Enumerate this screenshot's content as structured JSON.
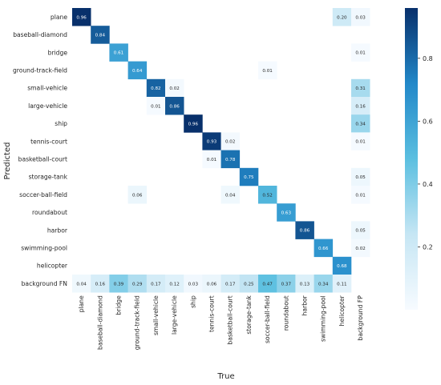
{
  "chart_data": {
    "type": "heatmap",
    "xlabel": "True",
    "ylabel": "Predicted",
    "x_categories": [
      "plane",
      "baseball-diamond",
      "bridge",
      "ground-track-field",
      "small-vehicle",
      "large-vehicle",
      "ship",
      "tennis-court",
      "basketball-court",
      "storage-tank",
      "soccer-ball-field",
      "roundabout",
      "harbor",
      "swimming-pool",
      "helicopter",
      "background FP"
    ],
    "y_categories": [
      "plane",
      "baseball-diamond",
      "bridge",
      "ground-track-field",
      "small-vehicle",
      "large-vehicle",
      "ship",
      "tennis-court",
      "basketball-court",
      "storage-tank",
      "soccer-ball-field",
      "roundabout",
      "harbor",
      "swimming-pool",
      "helicopter",
      "background FN"
    ],
    "cells": [
      {
        "row": 0,
        "col": 0,
        "value": 0.96,
        "label": "0.96"
      },
      {
        "row": 0,
        "col": 14,
        "value": 0.2,
        "label": "0.20"
      },
      {
        "row": 0,
        "col": 15,
        "value": 0.03,
        "label": "0.03"
      },
      {
        "row": 1,
        "col": 1,
        "value": 0.84,
        "label": "0.84"
      },
      {
        "row": 2,
        "col": 2,
        "value": 0.61,
        "label": "0.61"
      },
      {
        "row": 2,
        "col": 15,
        "value": 0.01,
        "label": "0.01"
      },
      {
        "row": 3,
        "col": 3,
        "value": 0.64,
        "label": "0.64"
      },
      {
        "row": 3,
        "col": 10,
        "value": 0.01,
        "label": "0.01"
      },
      {
        "row": 4,
        "col": 4,
        "value": 0.82,
        "label": "0.82"
      },
      {
        "row": 4,
        "col": 5,
        "value": 0.02,
        "label": "0.02"
      },
      {
        "row": 4,
        "col": 15,
        "value": 0.31,
        "label": "0.31"
      },
      {
        "row": 5,
        "col": 4,
        "value": 0.01,
        "label": "0.01"
      },
      {
        "row": 5,
        "col": 5,
        "value": 0.86,
        "label": "0.86"
      },
      {
        "row": 5,
        "col": 15,
        "value": 0.16,
        "label": "0.16"
      },
      {
        "row": 6,
        "col": 6,
        "value": 0.96,
        "label": "0.96"
      },
      {
        "row": 6,
        "col": 15,
        "value": 0.34,
        "label": "0.34"
      },
      {
        "row": 7,
        "col": 7,
        "value": 0.93,
        "label": "0.93"
      },
      {
        "row": 7,
        "col": 8,
        "value": 0.02,
        "label": "0.02"
      },
      {
        "row": 7,
        "col": 15,
        "value": 0.01,
        "label": "0.01"
      },
      {
        "row": 8,
        "col": 7,
        "value": 0.01,
        "label": "0.01"
      },
      {
        "row": 8,
        "col": 8,
        "value": 0.78,
        "label": "0.78"
      },
      {
        "row": 9,
        "col": 9,
        "value": 0.75,
        "label": "0.75"
      },
      {
        "row": 9,
        "col": 15,
        "value": 0.05,
        "label": "0.05"
      },
      {
        "row": 10,
        "col": 3,
        "value": 0.06,
        "label": "0.06"
      },
      {
        "row": 10,
        "col": 8,
        "value": 0.04,
        "label": "0.04"
      },
      {
        "row": 10,
        "col": 10,
        "value": 0.52,
        "label": "0.52"
      },
      {
        "row": 10,
        "col": 15,
        "value": 0.01,
        "label": "0.01"
      },
      {
        "row": 11,
        "col": 11,
        "value": 0.63,
        "label": "0.63"
      },
      {
        "row": 12,
        "col": 12,
        "value": 0.86,
        "label": "0.86"
      },
      {
        "row": 12,
        "col": 15,
        "value": 0.05,
        "label": "0.05"
      },
      {
        "row": 13,
        "col": 13,
        "value": 0.66,
        "label": "0.66"
      },
      {
        "row": 13,
        "col": 15,
        "value": 0.02,
        "label": "0.02"
      },
      {
        "row": 14,
        "col": 14,
        "value": 0.68,
        "label": "0.68"
      },
      {
        "row": 15,
        "col": 0,
        "value": 0.04,
        "label": "0.04"
      },
      {
        "row": 15,
        "col": 1,
        "value": 0.16,
        "label": "0.16"
      },
      {
        "row": 15,
        "col": 2,
        "value": 0.39,
        "label": "0.39"
      },
      {
        "row": 15,
        "col": 3,
        "value": 0.29,
        "label": "0.29"
      },
      {
        "row": 15,
        "col": 4,
        "value": 0.17,
        "label": "0.17"
      },
      {
        "row": 15,
        "col": 5,
        "value": 0.12,
        "label": "0.12"
      },
      {
        "row": 15,
        "col": 6,
        "value": 0.03,
        "label": "0.03"
      },
      {
        "row": 15,
        "col": 7,
        "value": 0.06,
        "label": "0.06"
      },
      {
        "row": 15,
        "col": 8,
        "value": 0.17,
        "label": "0.17"
      },
      {
        "row": 15,
        "col": 9,
        "value": 0.25,
        "label": "0.25"
      },
      {
        "row": 15,
        "col": 10,
        "value": 0.47,
        "label": "0.47"
      },
      {
        "row": 15,
        "col": 11,
        "value": 0.37,
        "label": "0.37"
      },
      {
        "row": 15,
        "col": 12,
        "value": 0.13,
        "label": "0.13"
      },
      {
        "row": 15,
        "col": 13,
        "value": 0.34,
        "label": "0.34"
      },
      {
        "row": 15,
        "col": 14,
        "value": 0.11,
        "label": "0.11"
      }
    ],
    "colorbar": {
      "ticks": [
        "0.2",
        "0.4",
        "0.6",
        "0.8"
      ],
      "range": [
        0,
        0.96
      ],
      "colormap": "Blues"
    },
    "grid": false
  }
}
